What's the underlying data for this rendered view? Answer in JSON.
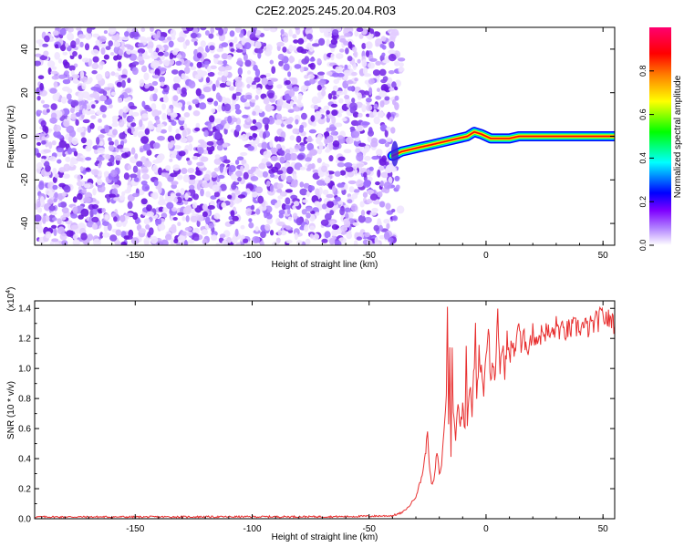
{
  "title": "C2E2.2025.245.20.04.R03",
  "chart_data": [
    {
      "type": "heatmap",
      "name": "spectrogram",
      "xlabel": "Height of straight line (km)",
      "ylabel": "Frequency (Hz)",
      "xlim": [
        -193,
        55
      ],
      "ylim": [
        -50,
        50
      ],
      "xticks": [
        -150,
        -100,
        -50,
        0,
        50
      ],
      "yticks": [
        -40,
        -20,
        0,
        20,
        40
      ],
      "xtick_labels": [
        "-150",
        "-100",
        "-50",
        "0",
        "50"
      ],
      "ytick_labels": [
        "-40",
        "-20",
        "0",
        "20",
        "40"
      ],
      "noise_region_x": [
        -193,
        -38
      ],
      "ridge": {
        "x": [
          -40,
          -36,
          -32,
          -28,
          -24,
          -20,
          -16,
          -12,
          -8,
          -5,
          -2,
          2,
          6,
          10,
          14,
          20,
          30,
          40,
          55
        ],
        "freq": [
          -9,
          -7,
          -6,
          -5,
          -4,
          -3,
          -2,
          -1,
          0,
          2,
          1,
          -1,
          -1,
          -1,
          0,
          0,
          0,
          0,
          0
        ]
      },
      "colorbar": {
        "label": "Normalized spectral amplitude",
        "range": [
          0,
          1
        ],
        "ticks": [
          0.0,
          0.2,
          0.4,
          0.6,
          0.8
        ],
        "tick_labels": [
          "0.0",
          "0.2",
          "0.4",
          "0.6",
          "0.8"
        ],
        "colors": [
          "#ffffff",
          "#7f00ff",
          "#0000ff",
          "#00ffff",
          "#00ff00",
          "#ffff00",
          "#ff8000",
          "#ff0000",
          "#ff0080"
        ]
      }
    },
    {
      "type": "line",
      "name": "snr",
      "xlabel": "Height of straight line (km)",
      "ylabel": "SNR (10 * v/v)",
      "y_multiplier_label": "(x10",
      "y_multiplier_exp": "4",
      "xlim": [
        -193,
        55
      ],
      "ylim": [
        0,
        14500
      ],
      "xticks": [
        -150,
        -100,
        -50,
        0,
        50
      ],
      "xtick_labels": [
        "-150",
        "-100",
        "-50",
        "0",
        "50"
      ],
      "yticks": [
        0,
        2000,
        4000,
        6000,
        8000,
        10000,
        12000,
        14000
      ],
      "ytick_labels": [
        "0.0",
        "0.2",
        "0.4",
        "0.6",
        "0.8",
        "1.0",
        "1.2",
        "1.4"
      ],
      "color": "#e83030",
      "series": [
        {
          "name": "SNR",
          "x": [
            -193,
            -150,
            -100,
            -60,
            -40,
            -36,
            -33,
            -30,
            -28,
            -27,
            -26,
            -25.5,
            -25,
            -24,
            -23,
            -22,
            -21,
            -20,
            -19,
            -18,
            -17,
            -16.5,
            -16,
            -15.5,
            -15,
            -14.5,
            -14,
            -13,
            -12,
            -11,
            -10,
            -9,
            -8.5,
            -8,
            -7,
            -6,
            -5,
            -4.5,
            -4,
            -3,
            -2,
            -1,
            0,
            1,
            2,
            3,
            4,
            5,
            6,
            7,
            8,
            9,
            10,
            11,
            12,
            13,
            14,
            15,
            16,
            18,
            20,
            22,
            25,
            28,
            30,
            33,
            36,
            40,
            44,
            48,
            50,
            52,
            53,
            54,
            55
          ],
          "y": [
            120,
            120,
            130,
            140,
            200,
            400,
            800,
            1500,
            2500,
            3200,
            4200,
            5000,
            6000,
            3000,
            2200,
            2800,
            4500,
            3000,
            3500,
            6000,
            8000,
            14500,
            6000,
            12000,
            4000,
            11000,
            7000,
            5500,
            8000,
            6000,
            7500,
            6000,
            12200,
            6500,
            9000,
            7000,
            10500,
            12500,
            8000,
            11000,
            10000,
            8500,
            11000,
            13000,
            9000,
            10500,
            9200,
            13500,
            10000,
            11500,
            9800,
            12000,
            10500,
            11800,
            10800,
            12200,
            13200,
            11200,
            12000,
            11500,
            12300,
            12000,
            12500,
            12200,
            12800,
            12400,
            12600,
            12800,
            12700,
            13200,
            13500,
            13300,
            13000,
            13500,
            12800
          ]
        }
      ]
    }
  ]
}
